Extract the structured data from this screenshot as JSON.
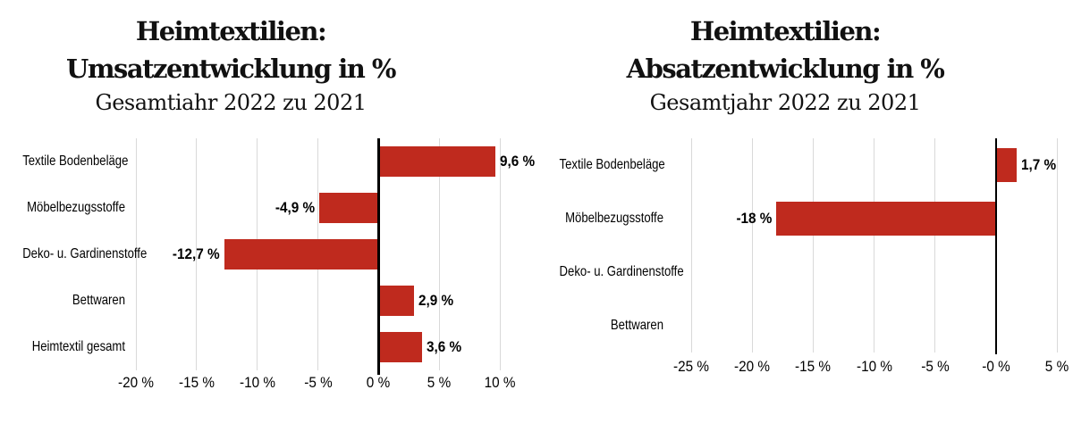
{
  "chart_data": [
    {
      "type": "bar",
      "orientation": "horizontal",
      "title_lines": [
        "Heimtextilien:",
        "Umsatzentwicklung in %"
      ],
      "subtitle": "Gesamtiahr 2022 zu 2021",
      "categories": [
        "Textile Bodenbeläge",
        "Möbelbezugsstoffe",
        "Deko- u. Gardinenstoffe",
        "Bettwaren",
        "Heimtextil gesamt"
      ],
      "values": [
        9.6,
        -4.9,
        -12.7,
        2.9,
        3.6
      ],
      "value_labels": [
        "9,6 %",
        "-4,9 %",
        "-12,7 %",
        "2,9 %",
        "3,6 %"
      ],
      "xlim": [
        -20,
        10
      ],
      "xticks": [
        {
          "v": -20,
          "label": "-20 %"
        },
        {
          "v": -15,
          "label": "-15 %"
        },
        {
          "v": -10,
          "label": "-10 %"
        },
        {
          "v": -5,
          "label": "-5 %"
        },
        {
          "v": 0,
          "label": "0 %"
        },
        {
          "v": 5,
          "label": "5 %"
        },
        {
          "v": 10,
          "label": "10 %"
        }
      ],
      "grid": true,
      "legend": null,
      "bar_color": "#bf2a1e",
      "gridline_color": "#d9d9d9",
      "zero_line_color": "#000000"
    },
    {
      "type": "bar",
      "orientation": "horizontal",
      "title_lines": [
        "Heimtextilien:",
        "Absatzentwicklung in %"
      ],
      "subtitle": "Gesamtjahr 2022 zu 2021",
      "categories": [
        "Textile Bodenbeläge",
        "Möbelbezugsstoffe",
        "Deko- u. Gardinenstoffe",
        "Bettwaren"
      ],
      "values": [
        1.7,
        -18,
        null,
        null
      ],
      "value_labels": [
        "1,7 %",
        "-18 %",
        "",
        ""
      ],
      "xlim": [
        -25,
        5
      ],
      "xticks": [
        {
          "v": -25,
          "label": "-25 %"
        },
        {
          "v": -20,
          "label": "-20 %"
        },
        {
          "v": -15,
          "label": "-15 %"
        },
        {
          "v": -10,
          "label": "-10 %"
        },
        {
          "v": -5,
          "label": "-5 %"
        },
        {
          "v": 0,
          "label": "-0 %"
        },
        {
          "v": 5,
          "label": "5 %"
        }
      ],
      "grid": true,
      "legend": null,
      "bar_color": "#bf2a1e",
      "gridline_color": "#d9d9d9",
      "zero_line_color": "#000000"
    }
  ]
}
